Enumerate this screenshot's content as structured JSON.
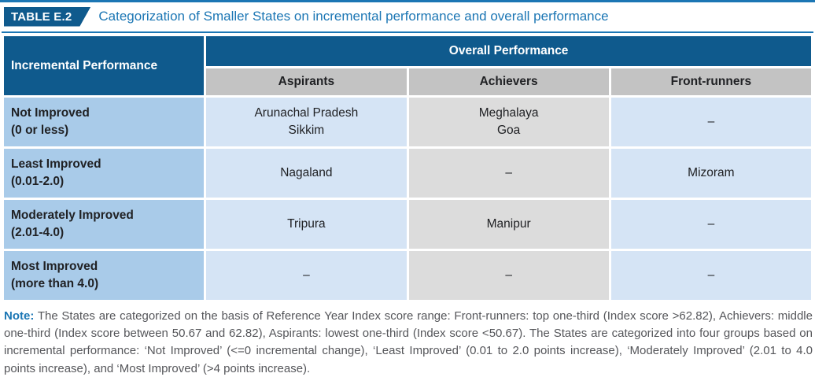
{
  "title": {
    "badge": "TABLE E.2",
    "text": "Categorization of Smaller States on incremental performance and overall performance"
  },
  "table": {
    "row_axis_header": "Incremental Performance",
    "col_group_header": "Overall Performance",
    "columns": [
      "Aspirants",
      "Achievers",
      "Front-runners"
    ],
    "rows": [
      {
        "label_line1": "Not Improved",
        "label_line2": "(0 or less)",
        "cells": [
          [
            "Arunachal Pradesh",
            "Sikkim"
          ],
          [
            "Meghalaya",
            "Goa"
          ],
          [
            "–"
          ]
        ]
      },
      {
        "label_line1": "Least Improved",
        "label_line2": "(0.01-2.0)",
        "cells": [
          [
            "Nagaland"
          ],
          [
            "–"
          ],
          [
            "Mizoram"
          ]
        ]
      },
      {
        "label_line1": "Moderately Improved",
        "label_line2": "(2.01-4.0)",
        "cells": [
          [
            "Tripura"
          ],
          [
            "Manipur"
          ],
          [
            "–"
          ]
        ]
      },
      {
        "label_line1": "Most Improved",
        "label_line2": "(more than 4.0)",
        "cells": [
          [
            "–"
          ],
          [
            "–"
          ],
          [
            "–"
          ]
        ]
      }
    ]
  },
  "note": {
    "label": "Note:",
    "text": "The States are categorized on the basis of Reference Year Index score range: Front-runners: top one-third (Index score >62.82), Achievers: middle one-third (Index score between 50.67 and 62.82), Aspirants: lowest one-third (Index score <50.67). The States are categorized into four groups based on incremental performance: ‘Not Improved’ (<=0 incremental change), ‘Least Improved’ (0.01 to 2.0 points increase), ‘Moderately Improved’ (2.01 to 4.0 points increase), and ‘Most Improved’ (>4 points increase)."
  },
  "colors": {
    "dark_blue": "#0f5a8d",
    "accent_blue": "#1b76b4",
    "row_label_blue": "#a9cbe9",
    "cell_light_blue": "#d5e4f5",
    "subheader_gray": "#c3c3c3",
    "cell_gray": "#dcdcdc",
    "note_text_gray": "#55565a"
  }
}
